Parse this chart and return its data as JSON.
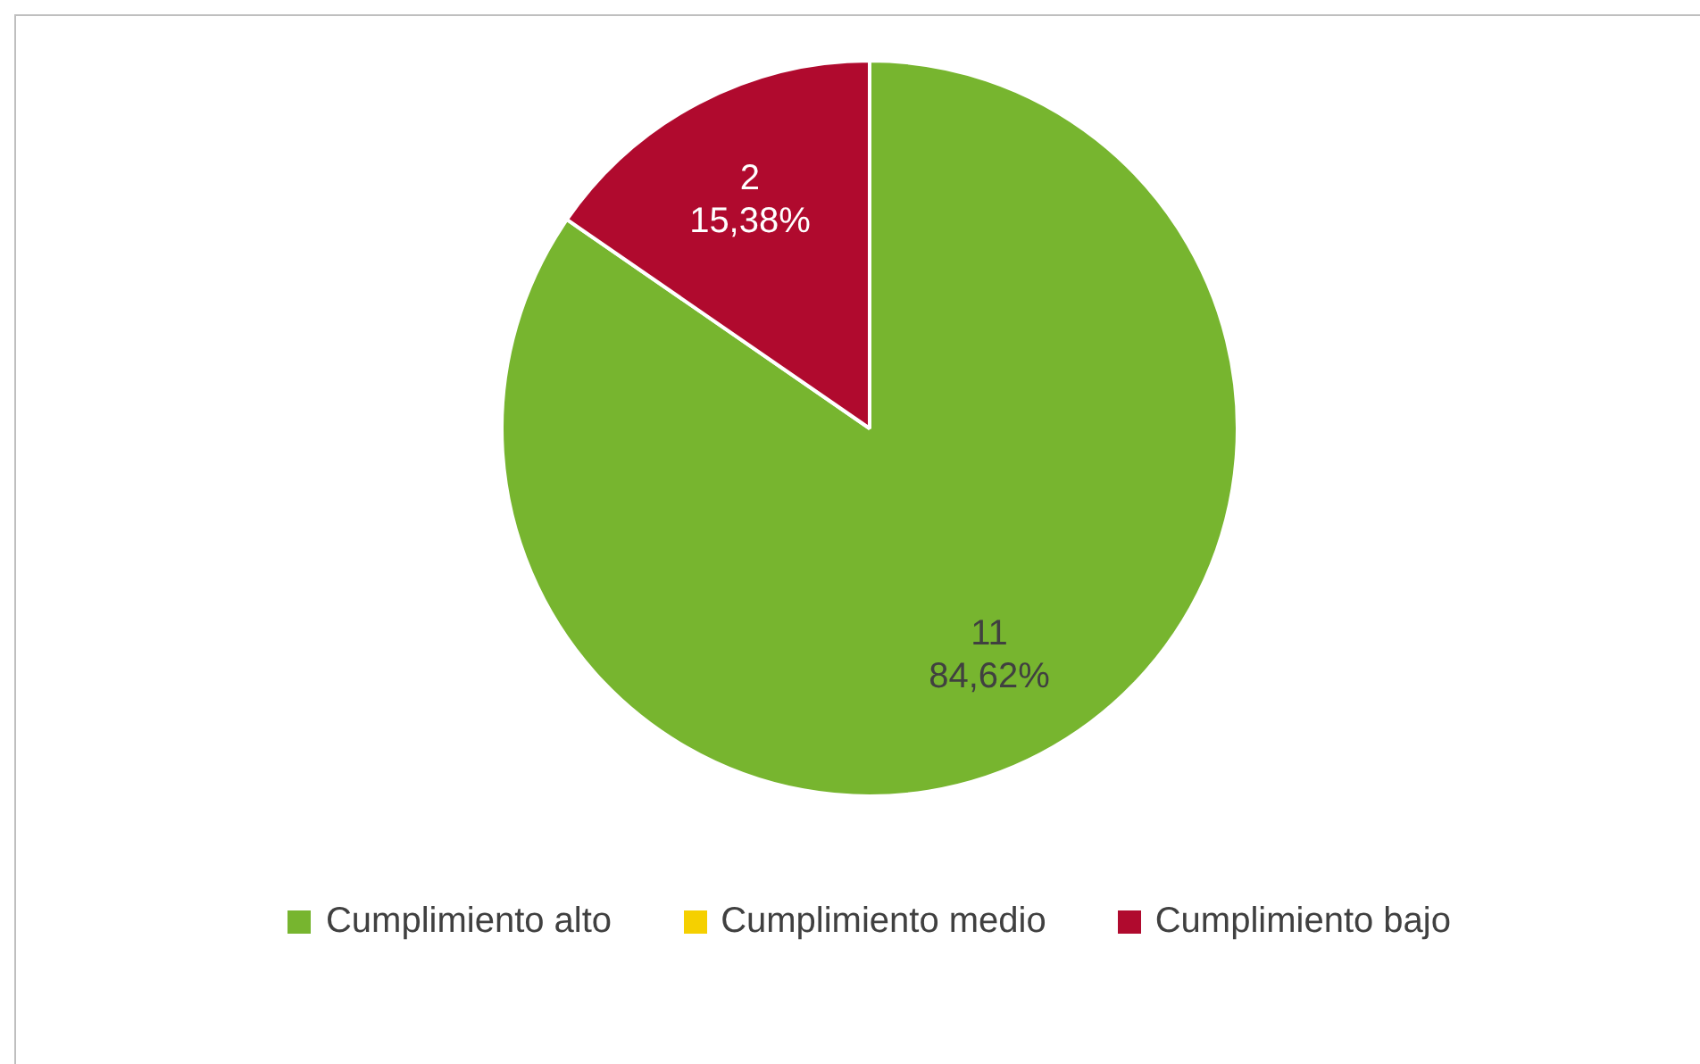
{
  "chart_data": {
    "type": "pie",
    "categories": [
      "Cumplimiento alto",
      "Cumplimiento medio",
      "Cumplimiento bajo"
    ],
    "values": [
      11,
      0,
      2
    ],
    "colors": [
      "#77b52f",
      "#f5d000",
      "#b00a2e"
    ],
    "value_labels": [
      "11\n84,62%",
      null,
      "2\n15,38%"
    ],
    "legend": "bottom"
  }
}
